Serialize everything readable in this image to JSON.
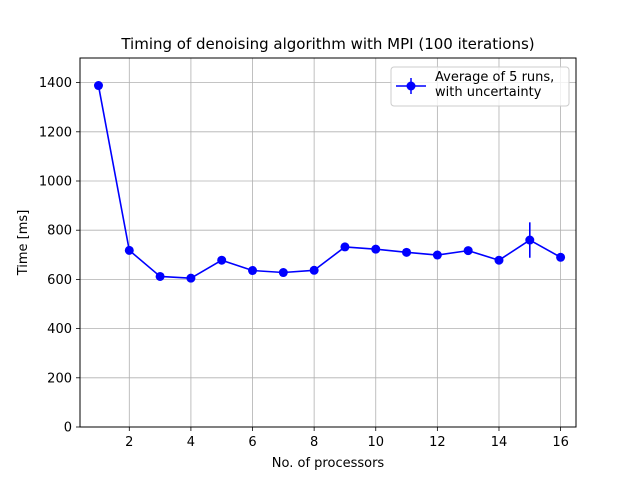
{
  "chart_data": {
    "type": "line",
    "title": "Timing of denoising algorithm with MPI (100 iterations)",
    "xlabel": "No. of processors",
    "ylabel": "Time [ms]",
    "xlim": [
      0.4,
      16.5
    ],
    "ylim": [
      0,
      1500
    ],
    "xticks": [
      2,
      4,
      6,
      8,
      10,
      12,
      14,
      16
    ],
    "yticks": [
      0,
      200,
      400,
      600,
      800,
      1000,
      1200,
      1400
    ],
    "grid": true,
    "legend_position": "top-right",
    "series": [
      {
        "name": "Average of 5 runs,\nwith uncertainty",
        "color": "#0000ff",
        "marker": "circle",
        "x": [
          1,
          2,
          3,
          4,
          5,
          6,
          7,
          8,
          9,
          10,
          11,
          12,
          13,
          14,
          15,
          16
        ],
        "y": [
          1388,
          718,
          612,
          605,
          678,
          636,
          628,
          637,
          732,
          723,
          710,
          699,
          717,
          678,
          760,
          690
        ],
        "yerr": [
          8,
          12,
          8,
          6,
          8,
          8,
          6,
          6,
          8,
          8,
          8,
          6,
          10,
          8,
          72,
          8
        ]
      }
    ]
  }
}
